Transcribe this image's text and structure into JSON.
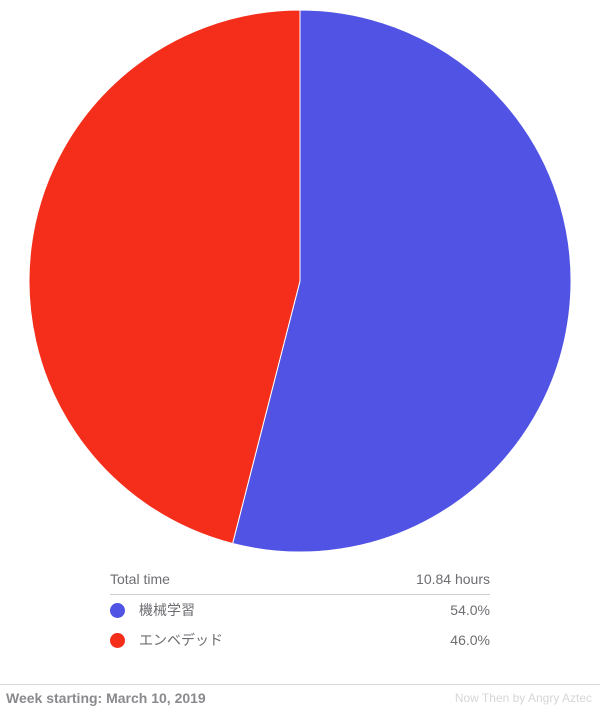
{
  "chart_data": {
    "type": "pie",
    "slices": [
      {
        "label": "機械学習",
        "value": 54.0,
        "display": "54.0%",
        "color": "#5053e3"
      },
      {
        "label": "エンベデッド",
        "value": 46.0,
        "display": "46.0%",
        "color": "#f42e1b"
      }
    ]
  },
  "summary": {
    "total_label": "Total time",
    "total_value": "10.84 hours"
  },
  "footer": {
    "week_label": "Week starting: March 10, 2019",
    "branding": "Now Then by Angry Aztec"
  }
}
